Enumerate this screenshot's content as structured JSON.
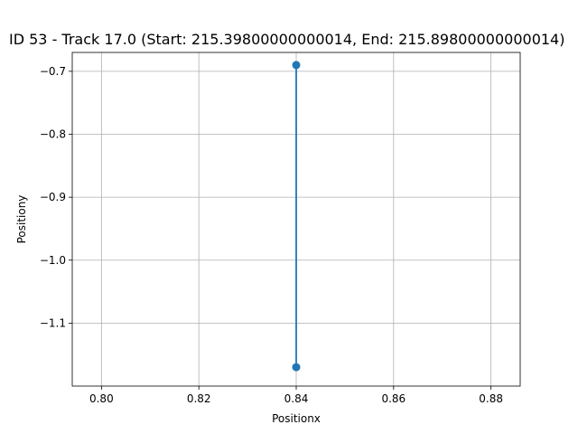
{
  "chart_data": {
    "type": "line",
    "title": "ID 53 - Track 17.0 (Start: 215.39800000000014, End: 215.89800000000014)",
    "xlabel": "Positionx",
    "ylabel": "Positiony",
    "xlim": [
      0.794,
      0.886
    ],
    "ylim": [
      -1.2,
      -0.67
    ],
    "xticks": [
      0.8,
      0.82,
      0.84,
      0.86,
      0.88
    ],
    "xtick_labels": [
      "0.80",
      "0.82",
      "0.84",
      "0.86",
      "0.88"
    ],
    "yticks": [
      -0.7,
      -0.8,
      -0.9,
      -1.0,
      -1.1
    ],
    "ytick_labels": [
      "−0.7",
      "−0.8",
      "−0.9",
      "−1.0",
      "−1.1"
    ],
    "grid": true,
    "series": [
      {
        "x": [
          0.84,
          0.84
        ],
        "y": [
          -0.69,
          -1.17
        ],
        "color": "#1f77b4",
        "marker": "circle"
      }
    ]
  }
}
